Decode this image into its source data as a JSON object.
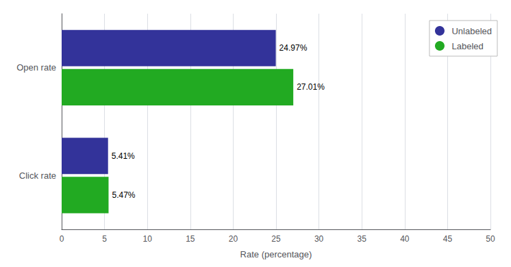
{
  "chart_data": {
    "type": "bar",
    "orientation": "horizontal",
    "categories": [
      "Open rate",
      "Click rate"
    ],
    "series": [
      {
        "name": "Unlabeled",
        "color": "#33339a",
        "values": [
          24.97,
          5.41
        ],
        "value_labels": [
          "24.97%",
          "5.41%"
        ]
      },
      {
        "name": "Labeled",
        "color": "#22aa22",
        "values": [
          27.01,
          5.47
        ],
        "value_labels": [
          "27.01%",
          "5.47%"
        ]
      }
    ],
    "xlabel": "Rate (percentage)",
    "xlim": [
      0,
      50
    ],
    "xticks": [
      0,
      5,
      10,
      15,
      20,
      25,
      30,
      35,
      40,
      45,
      50
    ],
    "grid": true,
    "legend": "upper right",
    "data_labels": true
  }
}
